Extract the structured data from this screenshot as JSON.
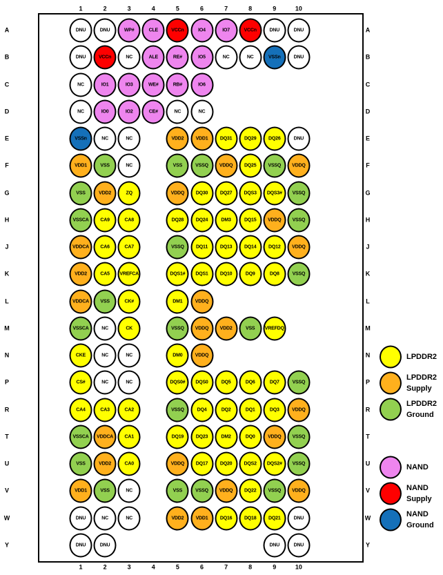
{
  "diagram": {
    "columns": [
      "1",
      "2",
      "3",
      "4",
      "5",
      "6",
      "7",
      "8",
      "9",
      "10"
    ],
    "rows": [
      {
        "letter": "A",
        "balls": [
          {
            "col": 1,
            "label": "DNU",
            "type": "unused"
          },
          {
            "col": 2,
            "label": "DNU",
            "type": "unused"
          },
          {
            "col": 3,
            "label": "WP#",
            "type": "nand"
          },
          {
            "col": 4,
            "label": "CLE",
            "type": "nand"
          },
          {
            "col": 5,
            "label": "VCCn",
            "type": "nand_supply"
          },
          {
            "col": 6,
            "label": "IO4",
            "type": "nand"
          },
          {
            "col": 7,
            "label": "IO7",
            "type": "nand"
          },
          {
            "col": 8,
            "label": "VCCn",
            "type": "nand_supply"
          },
          {
            "col": 9,
            "label": "DNU",
            "type": "unused"
          },
          {
            "col": 10,
            "label": "DNU",
            "type": "unused"
          }
        ]
      },
      {
        "letter": "B",
        "balls": [
          {
            "col": 1,
            "label": "DNU",
            "type": "unused"
          },
          {
            "col": 2,
            "label": "VCCn",
            "type": "nand_supply"
          },
          {
            "col": 3,
            "label": "NC",
            "type": "unused"
          },
          {
            "col": 4,
            "label": "ALE",
            "type": "nand"
          },
          {
            "col": 5,
            "label": "RE#",
            "type": "nand"
          },
          {
            "col": 6,
            "label": "IO5",
            "type": "nand"
          },
          {
            "col": 7,
            "label": "NC",
            "type": "unused"
          },
          {
            "col": 8,
            "label": "NC",
            "type": "unused"
          },
          {
            "col": 9,
            "label": "VSSn",
            "type": "nand_ground"
          },
          {
            "col": 10,
            "label": "DNU",
            "type": "unused"
          }
        ]
      },
      {
        "letter": "C",
        "balls": [
          {
            "col": 1,
            "label": "NC",
            "type": "unused"
          },
          {
            "col": 2,
            "label": "IO1",
            "type": "nand"
          },
          {
            "col": 3,
            "label": "IO3",
            "type": "nand"
          },
          {
            "col": 4,
            "label": "WE#",
            "type": "nand"
          },
          {
            "col": 5,
            "label": "RB#",
            "type": "nand"
          },
          {
            "col": 6,
            "label": "IO6",
            "type": "nand"
          }
        ]
      },
      {
        "letter": "D",
        "balls": [
          {
            "col": 1,
            "label": "NC",
            "type": "unused"
          },
          {
            "col": 2,
            "label": "IO0",
            "type": "nand"
          },
          {
            "col": 3,
            "label": "IO2",
            "type": "nand"
          },
          {
            "col": 4,
            "label": "CE#",
            "type": "nand"
          },
          {
            "col": 5,
            "label": "NC",
            "type": "unused"
          },
          {
            "col": 6,
            "label": "NC",
            "type": "unused"
          }
        ]
      },
      {
        "letter": "E",
        "balls": [
          {
            "col": 1,
            "label": "VSSn",
            "type": "nand_ground"
          },
          {
            "col": 2,
            "label": "NC",
            "type": "unused"
          },
          {
            "col": 3,
            "label": "NC",
            "type": "unused"
          },
          {
            "col": 5,
            "label": "VDD2",
            "type": "lpddr2_supply"
          },
          {
            "col": 6,
            "label": "VDD1",
            "type": "lpddr2_supply"
          },
          {
            "col": 7,
            "label": "DQ31",
            "type": "lpddr2"
          },
          {
            "col": 8,
            "label": "DQ29",
            "type": "lpddr2"
          },
          {
            "col": 9,
            "label": "DQ26",
            "type": "lpddr2"
          },
          {
            "col": 10,
            "label": "DNU",
            "type": "unused"
          }
        ]
      },
      {
        "letter": "F",
        "balls": [
          {
            "col": 1,
            "label": "VDD1",
            "type": "lpddr2_supply"
          },
          {
            "col": 2,
            "label": "VSS",
            "type": "lpddr2_ground"
          },
          {
            "col": 3,
            "label": "NC",
            "type": "unused"
          },
          {
            "col": 5,
            "label": "VSS",
            "type": "lpddr2_ground"
          },
          {
            "col": 6,
            "label": "VSSQ",
            "type": "lpddr2_ground"
          },
          {
            "col": 7,
            "label": "VDDQ",
            "type": "lpddr2_supply"
          },
          {
            "col": 8,
            "label": "DQ25",
            "type": "lpddr2"
          },
          {
            "col": 9,
            "label": "VSSQ",
            "type": "lpddr2_ground"
          },
          {
            "col": 10,
            "label": "VDDQ",
            "type": "lpddr2_supply"
          }
        ]
      },
      {
        "letter": "G",
        "balls": [
          {
            "col": 1,
            "label": "VSS",
            "type": "lpddr2_ground"
          },
          {
            "col": 2,
            "label": "VDD2",
            "type": "lpddr2_supply"
          },
          {
            "col": 3,
            "label": "ZQ",
            "type": "lpddr2"
          },
          {
            "col": 5,
            "label": "VDDQ",
            "type": "lpddr2_supply"
          },
          {
            "col": 6,
            "label": "DQ30",
            "type": "lpddr2"
          },
          {
            "col": 7,
            "label": "DQ27",
            "type": "lpddr2"
          },
          {
            "col": 8,
            "label": "DQS3",
            "type": "lpddr2"
          },
          {
            "col": 9,
            "label": "DQS3#",
            "type": "lpddr2"
          },
          {
            "col": 10,
            "label": "VSSQ",
            "type": "lpddr2_ground"
          }
        ]
      },
      {
        "letter": "H",
        "balls": [
          {
            "col": 1,
            "label": "VSSCA",
            "type": "lpddr2_ground"
          },
          {
            "col": 2,
            "label": "CA9",
            "type": "lpddr2"
          },
          {
            "col": 3,
            "label": "CA8",
            "type": "lpddr2"
          },
          {
            "col": 5,
            "label": "DQ28",
            "type": "lpddr2"
          },
          {
            "col": 6,
            "label": "DQ24",
            "type": "lpddr2"
          },
          {
            "col": 7,
            "label": "DM3",
            "type": "lpddr2"
          },
          {
            "col": 8,
            "label": "DQ15",
            "type": "lpddr2"
          },
          {
            "col": 9,
            "label": "VDDQ",
            "type": "lpddr2_supply"
          },
          {
            "col": 10,
            "label": "VSSQ",
            "type": "lpddr2_ground"
          }
        ]
      },
      {
        "letter": "J",
        "balls": [
          {
            "col": 1,
            "label": "VDDCA",
            "type": "lpddr2_supply"
          },
          {
            "col": 2,
            "label": "CA6",
            "type": "lpddr2"
          },
          {
            "col": 3,
            "label": "CA7",
            "type": "lpddr2"
          },
          {
            "col": 5,
            "label": "VSSQ",
            "type": "lpddr2_ground"
          },
          {
            "col": 6,
            "label": "DQ11",
            "type": "lpddr2"
          },
          {
            "col": 7,
            "label": "DQ13",
            "type": "lpddr2"
          },
          {
            "col": 8,
            "label": "DQ14",
            "type": "lpddr2"
          },
          {
            "col": 9,
            "label": "DQ12",
            "type": "lpddr2"
          },
          {
            "col": 10,
            "label": "VDDQ",
            "type": "lpddr2_supply"
          }
        ]
      },
      {
        "letter": "K",
        "balls": [
          {
            "col": 1,
            "label": "VDD2",
            "type": "lpddr2_supply"
          },
          {
            "col": 2,
            "label": "CA5",
            "type": "lpddr2"
          },
          {
            "col": 3,
            "label": "VREFCA",
            "type": "lpddr2"
          },
          {
            "col": 5,
            "label": "DQS1#",
            "type": "lpddr2"
          },
          {
            "col": 6,
            "label": "DQS1",
            "type": "lpddr2"
          },
          {
            "col": 7,
            "label": "DQ10",
            "type": "lpddr2"
          },
          {
            "col": 8,
            "label": "DQ9",
            "type": "lpddr2"
          },
          {
            "col": 9,
            "label": "DQ8",
            "type": "lpddr2"
          },
          {
            "col": 10,
            "label": "VSSQ",
            "type": "lpddr2_ground"
          }
        ]
      },
      {
        "letter": "L",
        "balls": [
          {
            "col": 1,
            "label": "VDDCA",
            "type": "lpddr2_supply"
          },
          {
            "col": 2,
            "label": "VSS",
            "type": "lpddr2_ground"
          },
          {
            "col": 3,
            "label": "CK#",
            "type": "lpddr2"
          },
          {
            "col": 5,
            "label": "DM1",
            "type": "lpddr2"
          },
          {
            "col": 6,
            "label": "VDDQ",
            "type": "lpddr2_supply"
          }
        ]
      },
      {
        "letter": "M",
        "balls": [
          {
            "col": 1,
            "label": "VSSCA",
            "type": "lpddr2_ground"
          },
          {
            "col": 2,
            "label": "NC",
            "type": "unused"
          },
          {
            "col": 3,
            "label": "CK",
            "type": "lpddr2"
          },
          {
            "col": 5,
            "label": "VSSQ",
            "type": "lpddr2_ground"
          },
          {
            "col": 6,
            "label": "VDDQ",
            "type": "lpddr2_supply"
          },
          {
            "col": 7,
            "label": "VDD2",
            "type": "lpddr2_supply"
          },
          {
            "col": 8,
            "label": "VSS",
            "type": "lpddr2_ground"
          },
          {
            "col": 9,
            "label": "VREFDQ",
            "type": "lpddr2"
          }
        ]
      },
      {
        "letter": "N",
        "balls": [
          {
            "col": 1,
            "label": "CKE",
            "type": "lpddr2"
          },
          {
            "col": 2,
            "label": "NC",
            "type": "unused"
          },
          {
            "col": 3,
            "label": "NC",
            "type": "unused"
          },
          {
            "col": 5,
            "label": "DM0",
            "type": "lpddr2"
          },
          {
            "col": 6,
            "label": "VDDQ",
            "type": "lpddr2_supply"
          }
        ]
      },
      {
        "letter": "P",
        "balls": [
          {
            "col": 1,
            "label": "CS#",
            "type": "lpddr2"
          },
          {
            "col": 2,
            "label": "NC",
            "type": "unused"
          },
          {
            "col": 3,
            "label": "NC",
            "type": "unused"
          },
          {
            "col": 5,
            "label": "DQS0#",
            "type": "lpddr2"
          },
          {
            "col": 6,
            "label": "DQS0",
            "type": "lpddr2"
          },
          {
            "col": 7,
            "label": "DQ5",
            "type": "lpddr2"
          },
          {
            "col": 8,
            "label": "DQ6",
            "type": "lpddr2"
          },
          {
            "col": 9,
            "label": "DQ7",
            "type": "lpddr2"
          },
          {
            "col": 10,
            "label": "VSSQ",
            "type": "lpddr2_ground"
          }
        ]
      },
      {
        "letter": "R",
        "balls": [
          {
            "col": 1,
            "label": "CA4",
            "type": "lpddr2"
          },
          {
            "col": 2,
            "label": "CA3",
            "type": "lpddr2"
          },
          {
            "col": 3,
            "label": "CA2",
            "type": "lpddr2"
          },
          {
            "col": 5,
            "label": "VSSQ",
            "type": "lpddr2_ground"
          },
          {
            "col": 6,
            "label": "DQ4",
            "type": "lpddr2"
          },
          {
            "col": 7,
            "label": "DQ2",
            "type": "lpddr2"
          },
          {
            "col": 8,
            "label": "DQ1",
            "type": "lpddr2"
          },
          {
            "col": 9,
            "label": "DQ3",
            "type": "lpddr2"
          },
          {
            "col": 10,
            "label": "VDDQ",
            "type": "lpddr2_supply"
          }
        ]
      },
      {
        "letter": "T",
        "balls": [
          {
            "col": 1,
            "label": "VSSCA",
            "type": "lpddr2_ground"
          },
          {
            "col": 2,
            "label": "VDDCA",
            "type": "lpddr2_supply"
          },
          {
            "col": 3,
            "label": "CA1",
            "type": "lpddr2"
          },
          {
            "col": 5,
            "label": "DQ19",
            "type": "lpddr2"
          },
          {
            "col": 6,
            "label": "DQ23",
            "type": "lpddr2"
          },
          {
            "col": 7,
            "label": "DM2",
            "type": "lpddr2"
          },
          {
            "col": 8,
            "label": "DQ0",
            "type": "lpddr2"
          },
          {
            "col": 9,
            "label": "VDDQ",
            "type": "lpddr2_supply"
          },
          {
            "col": 10,
            "label": "VSSQ",
            "type": "lpddr2_ground"
          }
        ]
      },
      {
        "letter": "U",
        "balls": [
          {
            "col": 1,
            "label": "VSS",
            "type": "lpddr2_ground"
          },
          {
            "col": 2,
            "label": "VDD2",
            "type": "lpddr2_supply"
          },
          {
            "col": 3,
            "label": "CA0",
            "type": "lpddr2"
          },
          {
            "col": 5,
            "label": "VDDQ",
            "type": "lpddr2_supply"
          },
          {
            "col": 6,
            "label": "DQ17",
            "type": "lpddr2"
          },
          {
            "col": 7,
            "label": "DQ20",
            "type": "lpddr2"
          },
          {
            "col": 8,
            "label": "DQS2",
            "type": "lpddr2"
          },
          {
            "col": 9,
            "label": "DQS2#",
            "type": "lpddr2"
          },
          {
            "col": 10,
            "label": "VSSQ",
            "type": "lpddr2_ground"
          }
        ]
      },
      {
        "letter": "V",
        "balls": [
          {
            "col": 1,
            "label": "VDD1",
            "type": "lpddr2_supply"
          },
          {
            "col": 2,
            "label": "VSS",
            "type": "lpddr2_ground"
          },
          {
            "col": 3,
            "label": "NC",
            "type": "unused"
          },
          {
            "col": 5,
            "label": "VSS",
            "type": "lpddr2_ground"
          },
          {
            "col": 6,
            "label": "VSSQ",
            "type": "lpddr2_ground"
          },
          {
            "col": 7,
            "label": "VDDQ",
            "type": "lpddr2_supply"
          },
          {
            "col": 8,
            "label": "DQ22",
            "type": "lpddr2"
          },
          {
            "col": 9,
            "label": "VSSQ",
            "type": "lpddr2_ground"
          },
          {
            "col": 10,
            "label": "VDDQ",
            "type": "lpddr2_supply"
          }
        ]
      },
      {
        "letter": "W",
        "balls": [
          {
            "col": 1,
            "label": "DNU",
            "type": "unused"
          },
          {
            "col": 2,
            "label": "NC",
            "type": "unused"
          },
          {
            "col": 3,
            "label": "NC",
            "type": "unused"
          },
          {
            "col": 5,
            "label": "VDD2",
            "type": "lpddr2_supply"
          },
          {
            "col": 6,
            "label": "VDD1",
            "type": "lpddr2_supply"
          },
          {
            "col": 7,
            "label": "DQ16",
            "type": "lpddr2"
          },
          {
            "col": 8,
            "label": "DQ18",
            "type": "lpddr2"
          },
          {
            "col": 9,
            "label": "DQ21",
            "type": "lpddr2"
          },
          {
            "col": 10,
            "label": "DNU",
            "type": "unused"
          }
        ]
      },
      {
        "letter": "Y",
        "balls": [
          {
            "col": 1,
            "label": "DNU",
            "type": "unused"
          },
          {
            "col": 2,
            "label": "DNU",
            "type": "unused"
          },
          {
            "col": 9,
            "label": "DNU",
            "type": "unused"
          },
          {
            "col": 10,
            "label": "DNU",
            "type": "unused"
          }
        ]
      }
    ]
  },
  "legend": {
    "items": [
      {
        "lines": [
          "LPDDR2"
        ],
        "type": "lpddr2"
      },
      {
        "lines": [
          "LPDDR2",
          "Supply"
        ],
        "type": "lpddr2_supply"
      },
      {
        "lines": [
          "LPDDR2",
          "Ground"
        ],
        "type": "lpddr2_ground"
      },
      {
        "lines": [
          "NAND"
        ],
        "type": "nand"
      },
      {
        "lines": [
          "NAND",
          "Supply"
        ],
        "type": "nand_supply"
      },
      {
        "lines": [
          "NAND",
          "Ground"
        ],
        "type": "nand_ground"
      }
    ]
  },
  "colors": {
    "lpddr2": "#FFFF00",
    "lpddr2_supply": "#FFB01D",
    "lpddr2_ground": "#92D050",
    "nand": "#EE85EE",
    "nand_supply": "#FE0000",
    "nand_ground": "#1570B9",
    "unused": "#FFFFFF"
  }
}
